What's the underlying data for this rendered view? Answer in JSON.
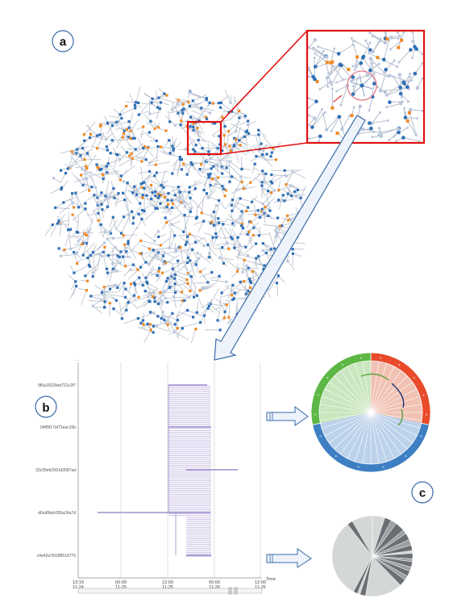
{
  "panels": {
    "a": "a",
    "b": "b",
    "c": "c"
  },
  "colors": {
    "node_blue": "#2e6fb5",
    "node_orange": "#f08a24",
    "node_light": "#b9c6dc",
    "edge": "#b7bfcc",
    "zoom_box": "#e01010",
    "timeline_bar": "#9f8fcf",
    "timeline_fill": "#ece7f6",
    "green": "#5db744",
    "red": "#e84a2a",
    "blue": "#3e7fc4",
    "pie_light": "#d3d7d5",
    "pie_dark": "#6b6f73"
  },
  "timeline": {
    "row_labels": [
      "5f6a15029ed721c2f7",
      "04ff9f17af72eac15b",
      "33c39eb2991d3587ad",
      "d0cd9fafc055a24a7d",
      "c4e42a7fd1f8f516775"
    ],
    "x_ticks": [
      {
        "time": "13:19",
        "date": "11-24"
      },
      {
        "time": "00:00",
        "date": "11-25"
      },
      {
        "time": "12:00",
        "date": "11-25"
      },
      {
        "time": "00:00",
        "date": "11-26"
      },
      {
        "time": "12:00",
        "date": "11-26"
      }
    ],
    "axis_label": "Time"
  },
  "chord": {
    "segment_labels": {
      "green": [
        "a",
        "a",
        "a",
        "a",
        "a"
      ],
      "red": [
        "a",
        "a",
        "a",
        "a",
        "a"
      ],
      "blue": [
        "a",
        "a",
        "a",
        "a",
        "a",
        "a"
      ]
    }
  }
}
